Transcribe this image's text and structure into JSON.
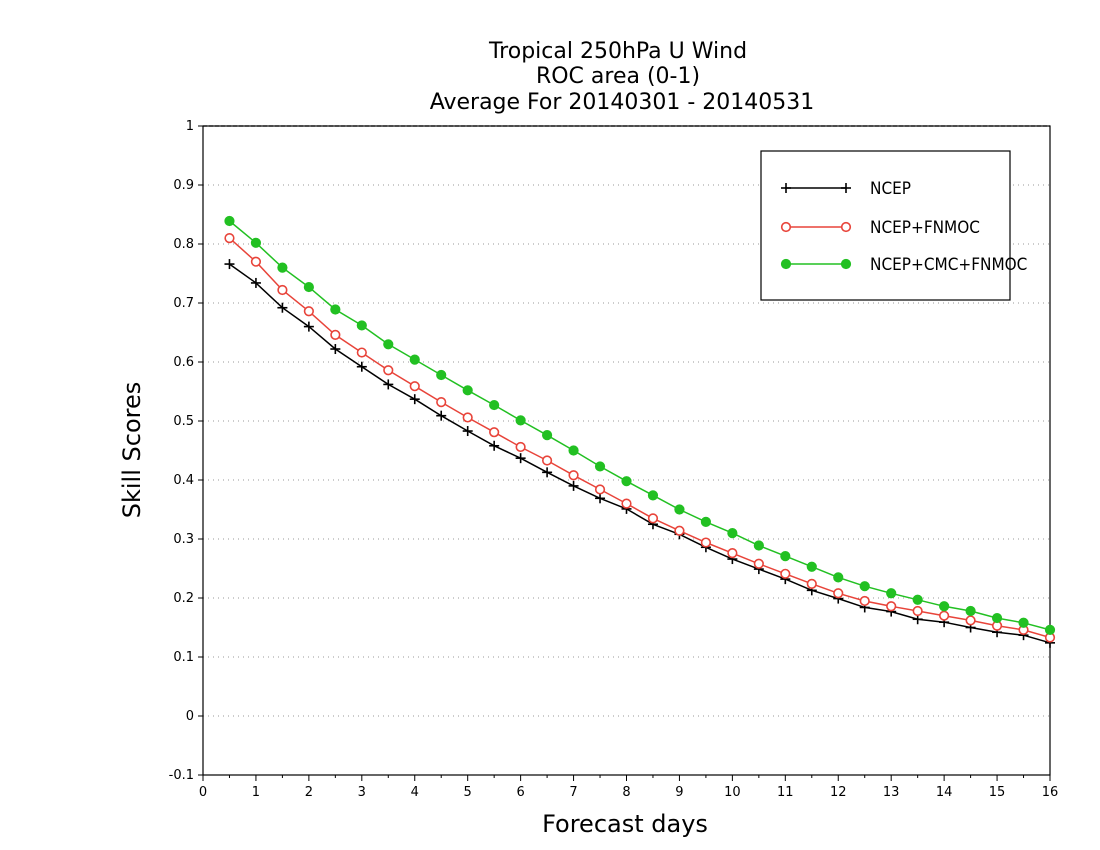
{
  "chart_data": {
    "type": "line",
    "title_lines": [
      "Tropical 250hPa U Wind",
      "ROC area (0-1)",
      "Average For 20140301 - 20140531"
    ],
    "xlabel": "Forecast days",
    "ylabel": "Skill Scores",
    "xlim": [
      0,
      16
    ],
    "ylim": [
      -0.1,
      1
    ],
    "xticks": [
      "0",
      "1",
      "2",
      "3",
      "4",
      "5",
      "6",
      "7",
      "8",
      "9",
      "10",
      "11",
      "12",
      "13",
      "14",
      "15",
      "16"
    ],
    "yticks": [
      "-0.1",
      "0",
      "0.1",
      "0.2",
      "0.3",
      "0.4",
      "0.5",
      "0.6",
      "0.7",
      "0.8",
      "0.9",
      "1"
    ],
    "grid": true,
    "legend_position": "top-right",
    "x": [
      0.5,
      1,
      1.5,
      2,
      2.5,
      3,
      3.5,
      4,
      4.5,
      5,
      5.5,
      6,
      6.5,
      7,
      7.5,
      8,
      8.5,
      9,
      9.5,
      10,
      10.5,
      11,
      11.5,
      12,
      12.5,
      13,
      13.5,
      14,
      14.5,
      15,
      15.5,
      16
    ],
    "series": [
      {
        "name": "NCEP",
        "color": "#000000",
        "marker": "plus",
        "values": [
          0.766,
          0.734,
          0.692,
          0.66,
          0.622,
          0.592,
          0.562,
          0.537,
          0.509,
          0.483,
          0.458,
          0.437,
          0.413,
          0.39,
          0.369,
          0.351,
          0.325,
          0.308,
          0.286,
          0.266,
          0.249,
          0.232,
          0.213,
          0.199,
          0.184,
          0.177,
          0.164,
          0.159,
          0.15,
          0.142,
          0.137,
          0.124
        ]
      },
      {
        "name": "NCEP+FNMOC",
        "color": "#e8443a",
        "marker": "open-circle",
        "values": [
          0.81,
          0.77,
          0.722,
          0.686,
          0.646,
          0.616,
          0.586,
          0.559,
          0.532,
          0.506,
          0.481,
          0.456,
          0.433,
          0.408,
          0.384,
          0.36,
          0.335,
          0.314,
          0.294,
          0.276,
          0.258,
          0.241,
          0.224,
          0.208,
          0.195,
          0.186,
          0.178,
          0.17,
          0.162,
          0.153,
          0.146,
          0.133
        ]
      },
      {
        "name": "NCEP+CMC+FNMOC",
        "color": "#22c022",
        "marker": "filled-circle",
        "values": [
          0.839,
          0.802,
          0.76,
          0.727,
          0.689,
          0.662,
          0.63,
          0.604,
          0.578,
          0.552,
          0.527,
          0.501,
          0.476,
          0.45,
          0.423,
          0.398,
          0.374,
          0.35,
          0.329,
          0.31,
          0.289,
          0.271,
          0.253,
          0.235,
          0.22,
          0.208,
          0.197,
          0.186,
          0.178,
          0.166,
          0.158,
          0.146
        ]
      }
    ]
  }
}
